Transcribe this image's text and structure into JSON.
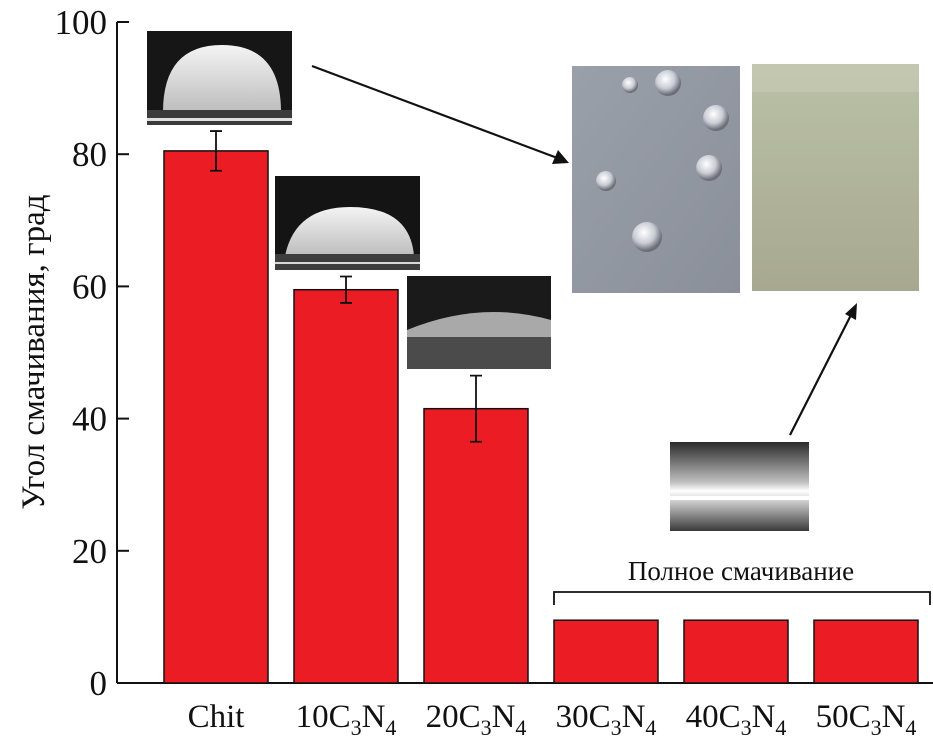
{
  "chart_data": {
    "type": "bar",
    "ylabel": "Угол смачивания, град",
    "ylim": [
      0,
      100
    ],
    "yticks": [
      0,
      20,
      40,
      60,
      80,
      100
    ],
    "categories": [
      {
        "label": "Chit",
        "prefix": "Chit",
        "formula": false
      },
      {
        "label": "10C3N4",
        "prefix": "10",
        "formula": true
      },
      {
        "label": "20C3N4",
        "prefix": "20",
        "formula": true
      },
      {
        "label": "30C3N4",
        "prefix": "30",
        "formula": true
      },
      {
        "label": "40C3N4",
        "prefix": "40",
        "formula": true
      },
      {
        "label": "50C3N4",
        "prefix": "50",
        "formula": true
      }
    ],
    "values": [
      80.5,
      59.5,
      41.5,
      9.5,
      9.5,
      9.5
    ],
    "errors": [
      3.0,
      2.0,
      5.0,
      null,
      null,
      null
    ],
    "bar_color": "#ec1c24",
    "annotation": "Полное смачивание",
    "grid": false
  }
}
